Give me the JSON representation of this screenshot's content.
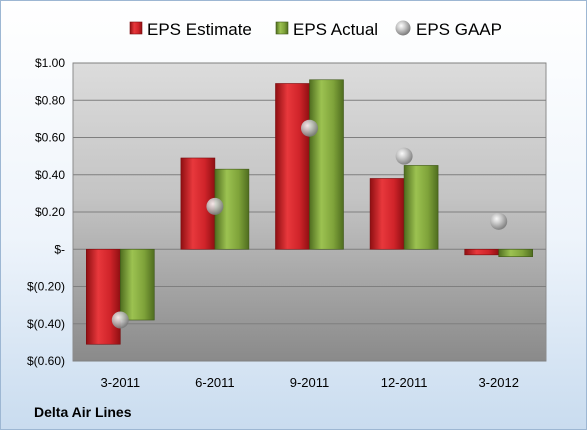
{
  "company": "Delta Air Lines",
  "chart_data": {
    "type": "bar",
    "title": "",
    "xlabel": "",
    "ylabel": "",
    "categories": [
      "3-2011",
      "6-2011",
      "9-2011",
      "12-2011",
      "3-2012"
    ],
    "series": [
      {
        "name": "EPS Estimate",
        "type": "bar",
        "color": "#cc1f24",
        "values": [
          -0.51,
          0.49,
          0.89,
          0.38,
          -0.03
        ]
      },
      {
        "name": "EPS Actual",
        "type": "bar",
        "color": "#7fa33a",
        "values": [
          -0.38,
          0.43,
          0.91,
          0.45,
          -0.04
        ]
      },
      {
        "name": "EPS GAAP",
        "type": "scatter",
        "color": "#b8b8b8",
        "values": [
          -0.38,
          0.23,
          0.65,
          0.5,
          0.15
        ]
      }
    ],
    "ylim": [
      -0.6,
      1.0
    ],
    "yticks": [
      1.0,
      0.8,
      0.6,
      0.4,
      0.2,
      0,
      -0.2,
      -0.4,
      -0.6
    ],
    "ytick_labels": [
      "$1.00",
      "$0.80",
      "$0.60",
      "$0.40",
      "$0.20",
      "$-",
      "$(0.20)",
      "$(0.40)",
      "$(0.60)"
    ],
    "grid": true,
    "legend": "top"
  }
}
